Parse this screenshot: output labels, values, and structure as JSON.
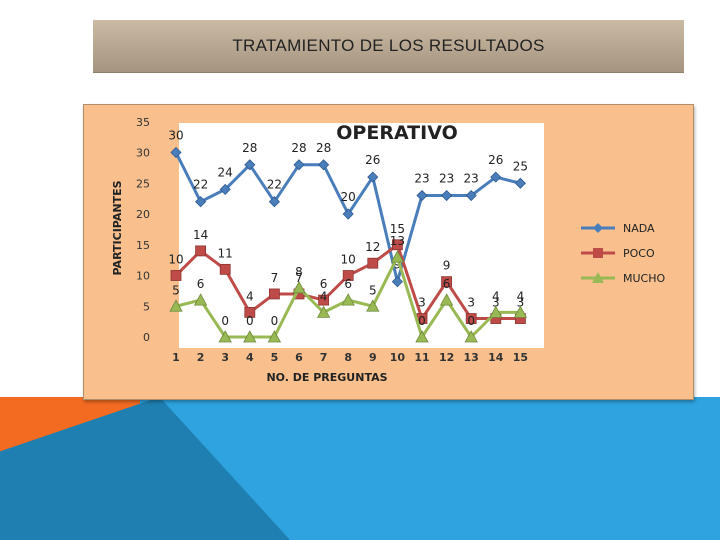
{
  "slide": {
    "title": "TRATAMIENTO DE LOS RESULTADOS"
  },
  "chart_data": {
    "type": "line",
    "title": "OPERATIVO",
    "xlabel": "NO. DE PREGUNTAS",
    "ylabel": "PARTICIPANTES",
    "categories": [
      "1",
      "2",
      "3",
      "4",
      "5",
      "6",
      "7",
      "8",
      "9",
      "10",
      "11",
      "12",
      "13",
      "14",
      "15"
    ],
    "y_ticks": [
      "0",
      "5",
      "10",
      "15",
      "20",
      "25",
      "30",
      "35"
    ],
    "ylim": [
      0,
      35
    ],
    "grid": false,
    "legend_position": "right",
    "series": [
      {
        "name": "NADA",
        "color": "#4a7ebb",
        "marker": "diamond",
        "values": [
          30,
          22,
          24,
          28,
          22,
          28,
          28,
          20,
          26,
          9,
          23,
          23,
          23,
          26,
          25
        ]
      },
      {
        "name": "POCO",
        "color": "#be4b48",
        "marker": "square",
        "values": [
          10,
          14,
          11,
          4,
          7,
          7,
          6,
          10,
          12,
          15,
          3,
          9,
          3,
          3,
          3
        ]
      },
      {
        "name": "MUCHO",
        "color": "#98b954",
        "marker": "triangle",
        "values": [
          5,
          6,
          0,
          0,
          0,
          8,
          4,
          6,
          5,
          13,
          0,
          6,
          0,
          4,
          4
        ]
      }
    ]
  }
}
